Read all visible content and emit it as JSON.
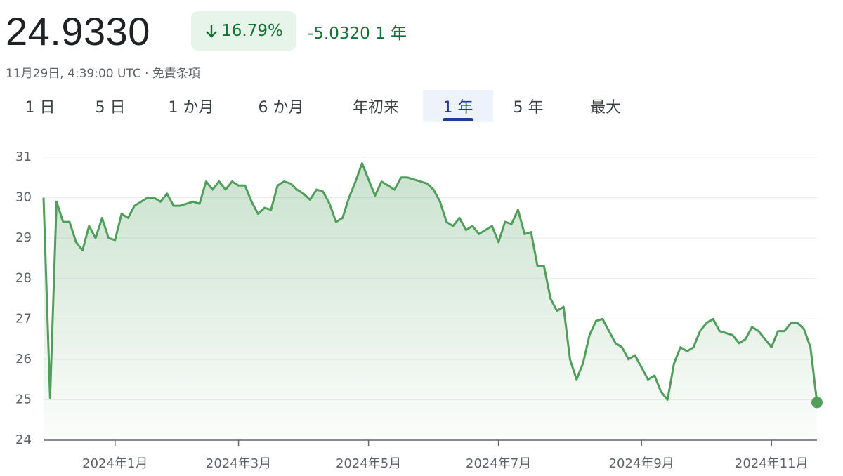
{
  "header": {
    "price": "24.9330",
    "change_percent": "16.79%",
    "change": "-5.0320",
    "period": "1 年",
    "timestamp": "11月29日, 4:39:00 UTC · 免責条項"
  },
  "tabs": {
    "labels": [
      "1 日",
      "5 日",
      "1 か月",
      "6 か月",
      "年初来",
      "1 年",
      "5 年",
      "最大"
    ],
    "selected": 5
  },
  "chart_data": {
    "type": "line",
    "categories": [
      null,
      null,
      null,
      null,
      null,
      null,
      null,
      null,
      null,
      null,
      null,
      "2024年1月",
      null,
      null,
      null,
      null,
      null,
      null,
      null,
      null,
      null,
      null,
      null,
      null,
      null,
      null,
      null,
      null,
      null,
      null,
      "2024年3月",
      null,
      null,
      null,
      null,
      null,
      null,
      null,
      null,
      null,
      null,
      null,
      null,
      null,
      null,
      null,
      null,
      null,
      null,
      null,
      "2024年5月",
      null,
      null,
      null,
      null,
      null,
      null,
      null,
      null,
      null,
      null,
      null,
      null,
      null,
      null,
      null,
      null,
      null,
      null,
      null,
      "2024年7月",
      null,
      null,
      null,
      null,
      null,
      null,
      null,
      null,
      null,
      null,
      null,
      null,
      null,
      null,
      null,
      null,
      null,
      null,
      null,
      null,
      null,
      "2024年9月",
      null,
      null,
      null,
      null,
      null,
      null,
      null,
      null,
      null,
      null,
      null,
      null,
      null,
      null,
      null,
      null,
      null,
      null,
      null,
      "2024年11月",
      null,
      null,
      null,
      null,
      null,
      null,
      null
    ],
    "series": [
      {
        "color": "#4f9e5a",
        "values": [
          30.0,
          25.05,
          29.9,
          29.4,
          29.4,
          28.9,
          28.7,
          29.3,
          29.0,
          29.5,
          29.0,
          28.95,
          29.6,
          29.5,
          29.8,
          29.9,
          30.0,
          30.0,
          29.9,
          30.1,
          29.8,
          29.8,
          29.85,
          29.9,
          29.85,
          30.4,
          30.2,
          30.4,
          30.2,
          30.4,
          30.3,
          30.3,
          29.9,
          29.6,
          29.75,
          29.7,
          30.3,
          30.4,
          30.35,
          30.2,
          30.1,
          29.95,
          30.2,
          30.15,
          29.85,
          29.4,
          29.5,
          30.0,
          30.4,
          30.85,
          30.45,
          30.05,
          30.4,
          30.3,
          30.2,
          30.5,
          30.5,
          30.45,
          30.4,
          30.35,
          30.2,
          29.9,
          29.4,
          29.3,
          29.5,
          29.2,
          29.3,
          29.1,
          29.2,
          29.3,
          28.9,
          29.4,
          29.35,
          29.7,
          29.1,
          29.15,
          28.3,
          28.3,
          27.5,
          27.2,
          27.3,
          26.0,
          25.5,
          25.9,
          26.6,
          26.95,
          27.0,
          26.7,
          26.4,
          26.3,
          26.0,
          26.1,
          25.8,
          25.5,
          25.6,
          25.2,
          25.0,
          25.9,
          26.3,
          26.2,
          26.3,
          26.7,
          26.9,
          27.0,
          26.7,
          26.65,
          26.6,
          26.4,
          26.5,
          26.8,
          26.7,
          26.5,
          26.3,
          26.7,
          26.7,
          26.9,
          26.9,
          26.75,
          26.3,
          24.933
        ]
      }
    ],
    "ylim": [
      24,
      31
    ],
    "yticks": [
      24,
      25,
      26,
      27,
      28,
      29,
      30,
      31
    ],
    "grid": true
  }
}
